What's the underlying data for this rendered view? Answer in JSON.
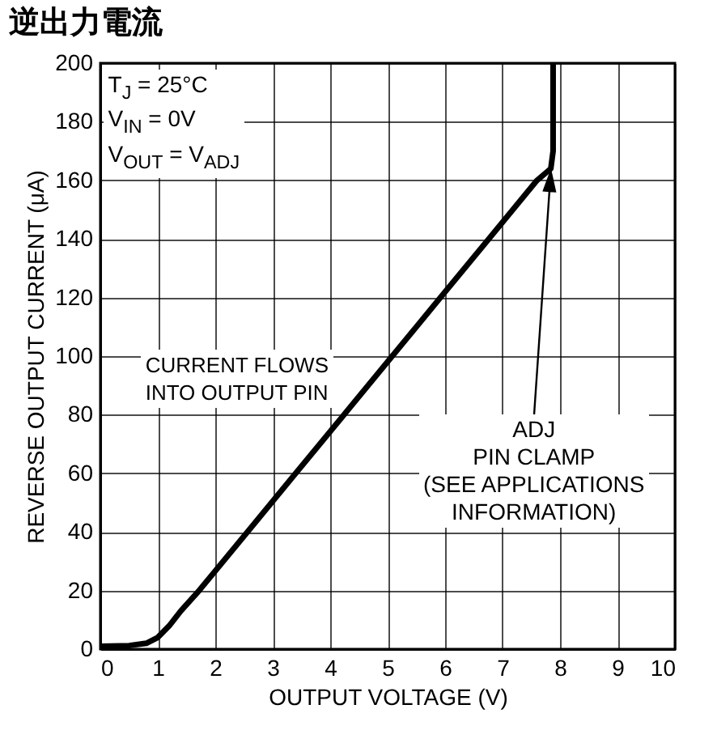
{
  "chart_data": {
    "type": "line",
    "title": "逆出力電流",
    "xlabel": "OUTPUT VOLTAGE (V)",
    "ylabel": "REVERSE OUTPUT CURRENT (μA)",
    "x": [
      0,
      0.5,
      0.8,
      1,
      1.2,
      1.4,
      1.72,
      2.56,
      3.4,
      4.24,
      5.08,
      5.92,
      6.76,
      7.6,
      7.84,
      7.88,
      7.88
    ],
    "series": [
      {
        "color": "#000000",
        "values": [
          1,
          1.2,
          2,
          4,
          8,
          13,
          20,
          40,
          60,
          80,
          100,
          120,
          140,
          160,
          164,
          170,
          200
        ]
      }
    ],
    "xlim": [
      0,
      10
    ],
    "xticks": [
      0,
      1,
      2,
      3,
      4,
      5,
      6,
      7,
      8,
      9,
      10
    ],
    "ylim": [
      0,
      200
    ],
    "yticks": [
      0,
      20,
      40,
      60,
      80,
      100,
      120,
      140,
      160,
      180,
      200
    ],
    "grid": true,
    "legend": false,
    "marker": "none",
    "line_style": "solid",
    "annotations": [
      "T$_{J}$ = 25°C\nV$_{IN}$ = 0V\nV$_{OUT}$ = V$_{ADJ}$",
      "CURRENT FLOWS\nINTO OUTPUT PIN",
      "ADJ\nPIN CLAMP\n(SEE APPLICATIONS\nINFORMATION)"
    ]
  }
}
